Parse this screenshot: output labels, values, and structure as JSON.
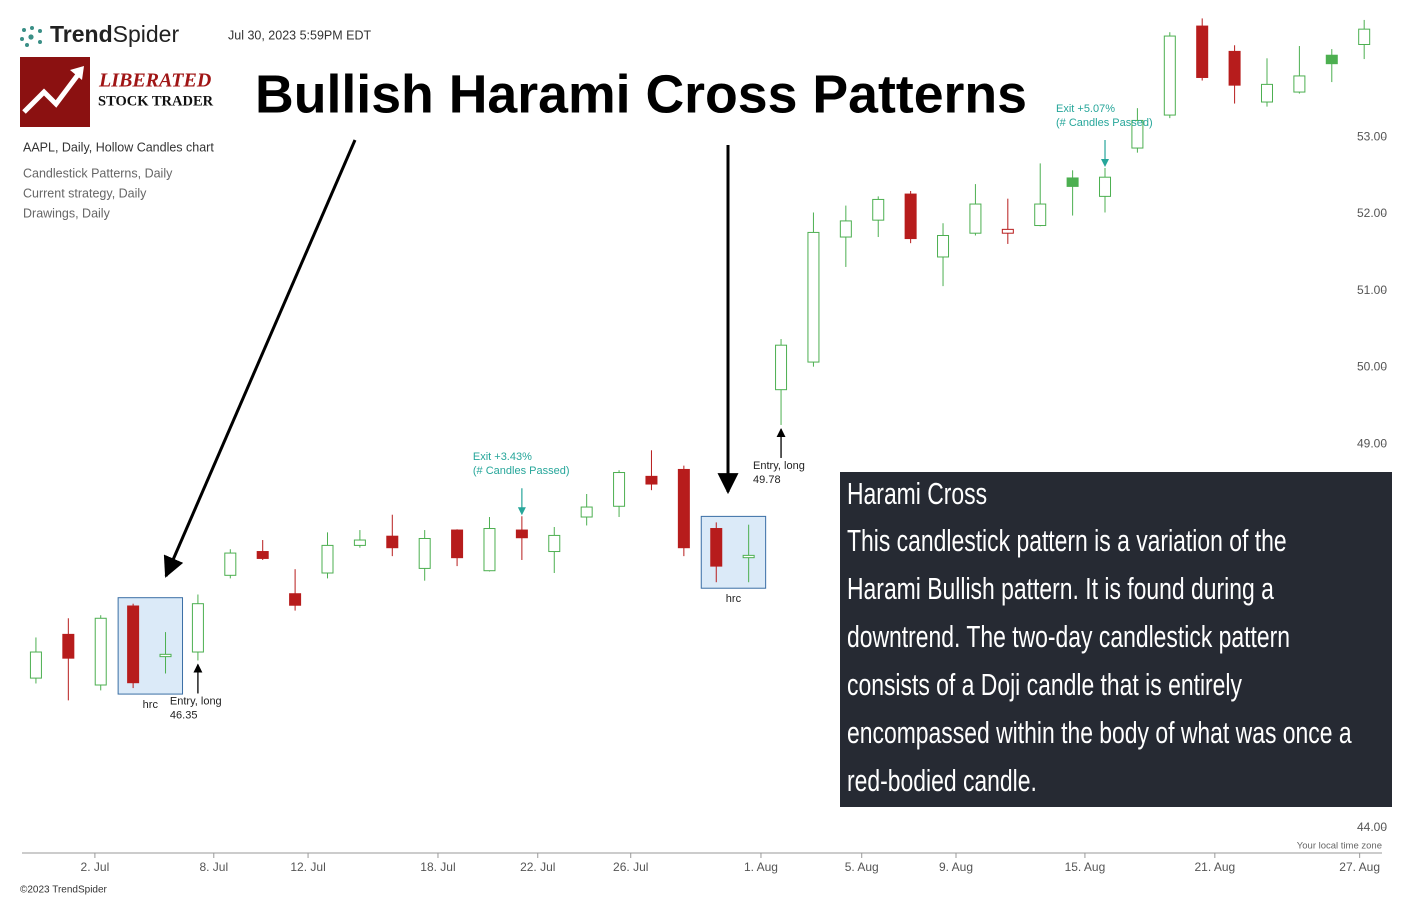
{
  "header": {
    "brand_bold": "Trend",
    "brand_light": "Spider",
    "timestamp": "Jul 30, 2023 5:59PM EDT",
    "logo_top": "LIBERATED",
    "logo_bottom": "STOCK TRADER"
  },
  "legend_lines": [
    "AAPL, Daily, Hollow Candles chart",
    "Candlestick Patterns, Daily",
    "Current strategy, Daily",
    "Drawings, Daily"
  ],
  "footer": {
    "timezone": "Your local time zone",
    "copyright": "©2023 TrendSpider"
  },
  "info_box": {
    "title": "Harami Cross",
    "body_lines": [
      "This candlestick pattern is a variation of the",
      "Harami Bullish pattern. It is found during a",
      "downtrend. The two-day candlestick pattern",
      "consists of a Doji candle that is entirely",
      "encompassed within the body of what was once a",
      "red-bodied candle."
    ]
  },
  "chart_data": {
    "type": "candlestick",
    "title": "Bullish Harami Cross Patterns",
    "up_color": "#4caf50",
    "down_color": "#b71c1c",
    "open": [
      45.95,
      46.52,
      45.86,
      46.89,
      46.23,
      46.29,
      47.29,
      47.6,
      47.05,
      47.32,
      47.68,
      47.8,
      47.38,
      47.88,
      47.35,
      47.88,
      47.6,
      48.05,
      48.19,
      48.58,
      48.67,
      47.9,
      47.52,
      49.71,
      50.07,
      51.7,
      51.92,
      52.26,
      51.44,
      51.75,
      51.75,
      51.85,
      52.47,
      52.23,
      52.86,
      53.29,
      54.45,
      54.12,
      53.46,
      53.59,
      54.07,
      54.21
    ],
    "high": [
      46.48,
      46.73,
      46.77,
      46.92,
      46.55,
      47.04,
      47.63,
      47.75,
      47.37,
      47.85,
      47.88,
      48.08,
      47.88,
      47.89,
      48.05,
      48.06,
      47.92,
      48.35,
      48.66,
      48.92,
      48.72,
      47.98,
      47.95,
      50.37,
      52.02,
      52.11,
      52.23,
      52.3,
      51.88,
      52.39,
      52.2,
      52.66,
      52.57,
      52.6,
      53.38,
      54.37,
      54.55,
      54.2,
      54.03,
      54.19,
      54.15,
      54.53
    ],
    "low": [
      45.88,
      45.66,
      45.79,
      45.82,
      46.01,
      46.18,
      47.25,
      47.49,
      46.83,
      47.25,
      47.65,
      47.54,
      47.22,
      47.41,
      47.34,
      47.49,
      47.32,
      47.94,
      48.05,
      48.4,
      47.54,
      47.2,
      47.2,
      49.25,
      50.01,
      51.31,
      51.7,
      51.62,
      51.06,
      51.72,
      51.61,
      51.84,
      51.98,
      52.02,
      52.8,
      53.25,
      53.74,
      53.44,
      53.4,
      53.57,
      53.72,
      54.02
    ],
    "close": [
      46.29,
      46.21,
      46.73,
      45.89,
      46.26,
      46.92,
      47.58,
      47.51,
      46.9,
      47.68,
      47.75,
      47.65,
      47.77,
      47.52,
      47.9,
      47.78,
      47.81,
      48.18,
      48.63,
      48.48,
      47.65,
      47.41,
      47.55,
      50.29,
      51.76,
      51.91,
      52.19,
      51.68,
      51.72,
      52.13,
      51.8,
      52.13,
      52.36,
      52.48,
      53.22,
      54.32,
      53.78,
      53.68,
      53.69,
      53.8,
      53.96,
      54.41
    ],
    "ylim": [
      43.67,
      54.79
    ],
    "yticks": [
      {
        "value": 44,
        "label": "44.00"
      },
      {
        "value": 49,
        "label": "49.00"
      },
      {
        "value": 50,
        "label": "50.00"
      },
      {
        "value": 51,
        "label": "51.00"
      },
      {
        "value": 52,
        "label": "52.00"
      },
      {
        "value": 53,
        "label": "53.00"
      }
    ],
    "xlim": [
      -0.43,
      41.55
    ],
    "xticks": [
      {
        "value": 1.82,
        "label": "2. Jul"
      },
      {
        "value": 5.49,
        "label": "8. Jul"
      },
      {
        "value": 8.4,
        "label": "12. Jul"
      },
      {
        "value": 12.41,
        "label": "18. Jul"
      },
      {
        "value": 15.49,
        "label": "22. Jul"
      },
      {
        "value": 18.36,
        "label": "26. Jul"
      },
      {
        "value": 22.38,
        "label": "1. Aug"
      },
      {
        "value": 25.49,
        "label": "5. Aug"
      },
      {
        "value": 28.4,
        "label": "9. Aug"
      },
      {
        "value": 32.38,
        "label": "15. Aug"
      },
      {
        "value": 36.39,
        "label": "21. Aug"
      },
      {
        "value": 40.86,
        "label": "27. Aug"
      }
    ],
    "patterns": [
      {
        "label": "hrc"
      },
      {
        "label": "hrc"
      }
    ],
    "entries": [
      {
        "label": "Entry, long",
        "price": 46.35
      },
      {
        "label": "Entry, long",
        "price": 49.78
      }
    ],
    "exits": [
      {
        "label": "Exit +3.43%",
        "note": "(# Candles Passed)"
      },
      {
        "label": "Exit +5.07%",
        "note": "(# Candles Passed)"
      }
    ]
  }
}
